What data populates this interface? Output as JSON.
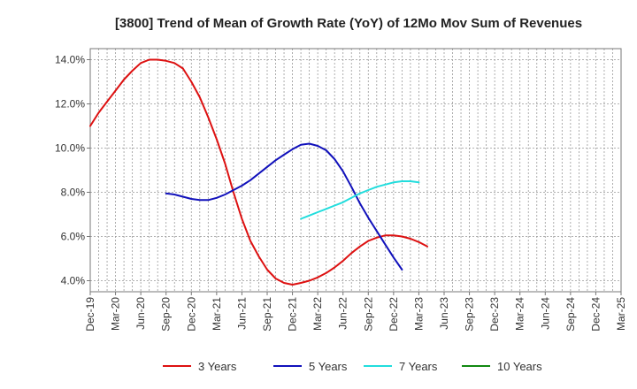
{
  "chart_data": {
    "type": "line",
    "title": "[3800]  Trend of Mean of Growth Rate (YoY) of 12Mo Mov Sum of Revenues",
    "xlabel": "",
    "ylabel": "",
    "ylim": [
      3.5,
      14.5
    ],
    "yticks": [
      4.0,
      6.0,
      8.0,
      10.0,
      12.0,
      14.0
    ],
    "ytick_labels": [
      "4.0%",
      "6.0%",
      "8.0%",
      "10.0%",
      "12.0%",
      "14.0%"
    ],
    "x_labels": [
      "Dec-19",
      "Mar-20",
      "Jun-20",
      "Sep-20",
      "Dec-20",
      "Mar-21",
      "Jun-21",
      "Sep-21",
      "Dec-21",
      "Mar-22",
      "Jun-22",
      "Sep-22",
      "Dec-22",
      "Mar-23",
      "Jun-23",
      "Sep-23",
      "Dec-23",
      "Mar-24",
      "Jun-24",
      "Sep-24",
      "Dec-24",
      "Mar-25"
    ],
    "grid": true,
    "legend_position": "bottom",
    "series": [
      {
        "name": "3 Years",
        "color": "#dd1111",
        "start_index": 0,
        "values": [
          11.0,
          11.6,
          12.1,
          12.6,
          13.1,
          13.5,
          13.85,
          14.0,
          14.0,
          13.95,
          13.85,
          13.6,
          13.0,
          12.3,
          11.4,
          10.4,
          9.3,
          8.0,
          6.8,
          5.8,
          5.1,
          4.5,
          4.1,
          3.9,
          3.82,
          3.9,
          4.0,
          4.15,
          4.35,
          4.6,
          4.9,
          5.25,
          5.55,
          5.8,
          5.95,
          6.05,
          6.05,
          6.0,
          5.9,
          5.75,
          5.55
        ]
      },
      {
        "name": "5 Years",
        "color": "#1111bb",
        "start_index": 9,
        "values": [
          7.95,
          7.9,
          7.8,
          7.7,
          7.65,
          7.65,
          7.75,
          7.9,
          8.1,
          8.3,
          8.55,
          8.85,
          9.15,
          9.45,
          9.7,
          9.95,
          10.15,
          10.2,
          10.1,
          9.9,
          9.5,
          8.95,
          8.25,
          7.5,
          6.85,
          6.25,
          5.65,
          5.05,
          4.5
        ]
      },
      {
        "name": "7 Years",
        "color": "#22dddd",
        "start_index": 25,
        "values": [
          6.8,
          6.95,
          7.1,
          7.25,
          7.4,
          7.55,
          7.75,
          7.95,
          8.1,
          8.25,
          8.35,
          8.45,
          8.5,
          8.5,
          8.45
        ]
      },
      {
        "name": "10 Years",
        "color": "#118811",
        "start_index": 0,
        "values": []
      }
    ]
  }
}
